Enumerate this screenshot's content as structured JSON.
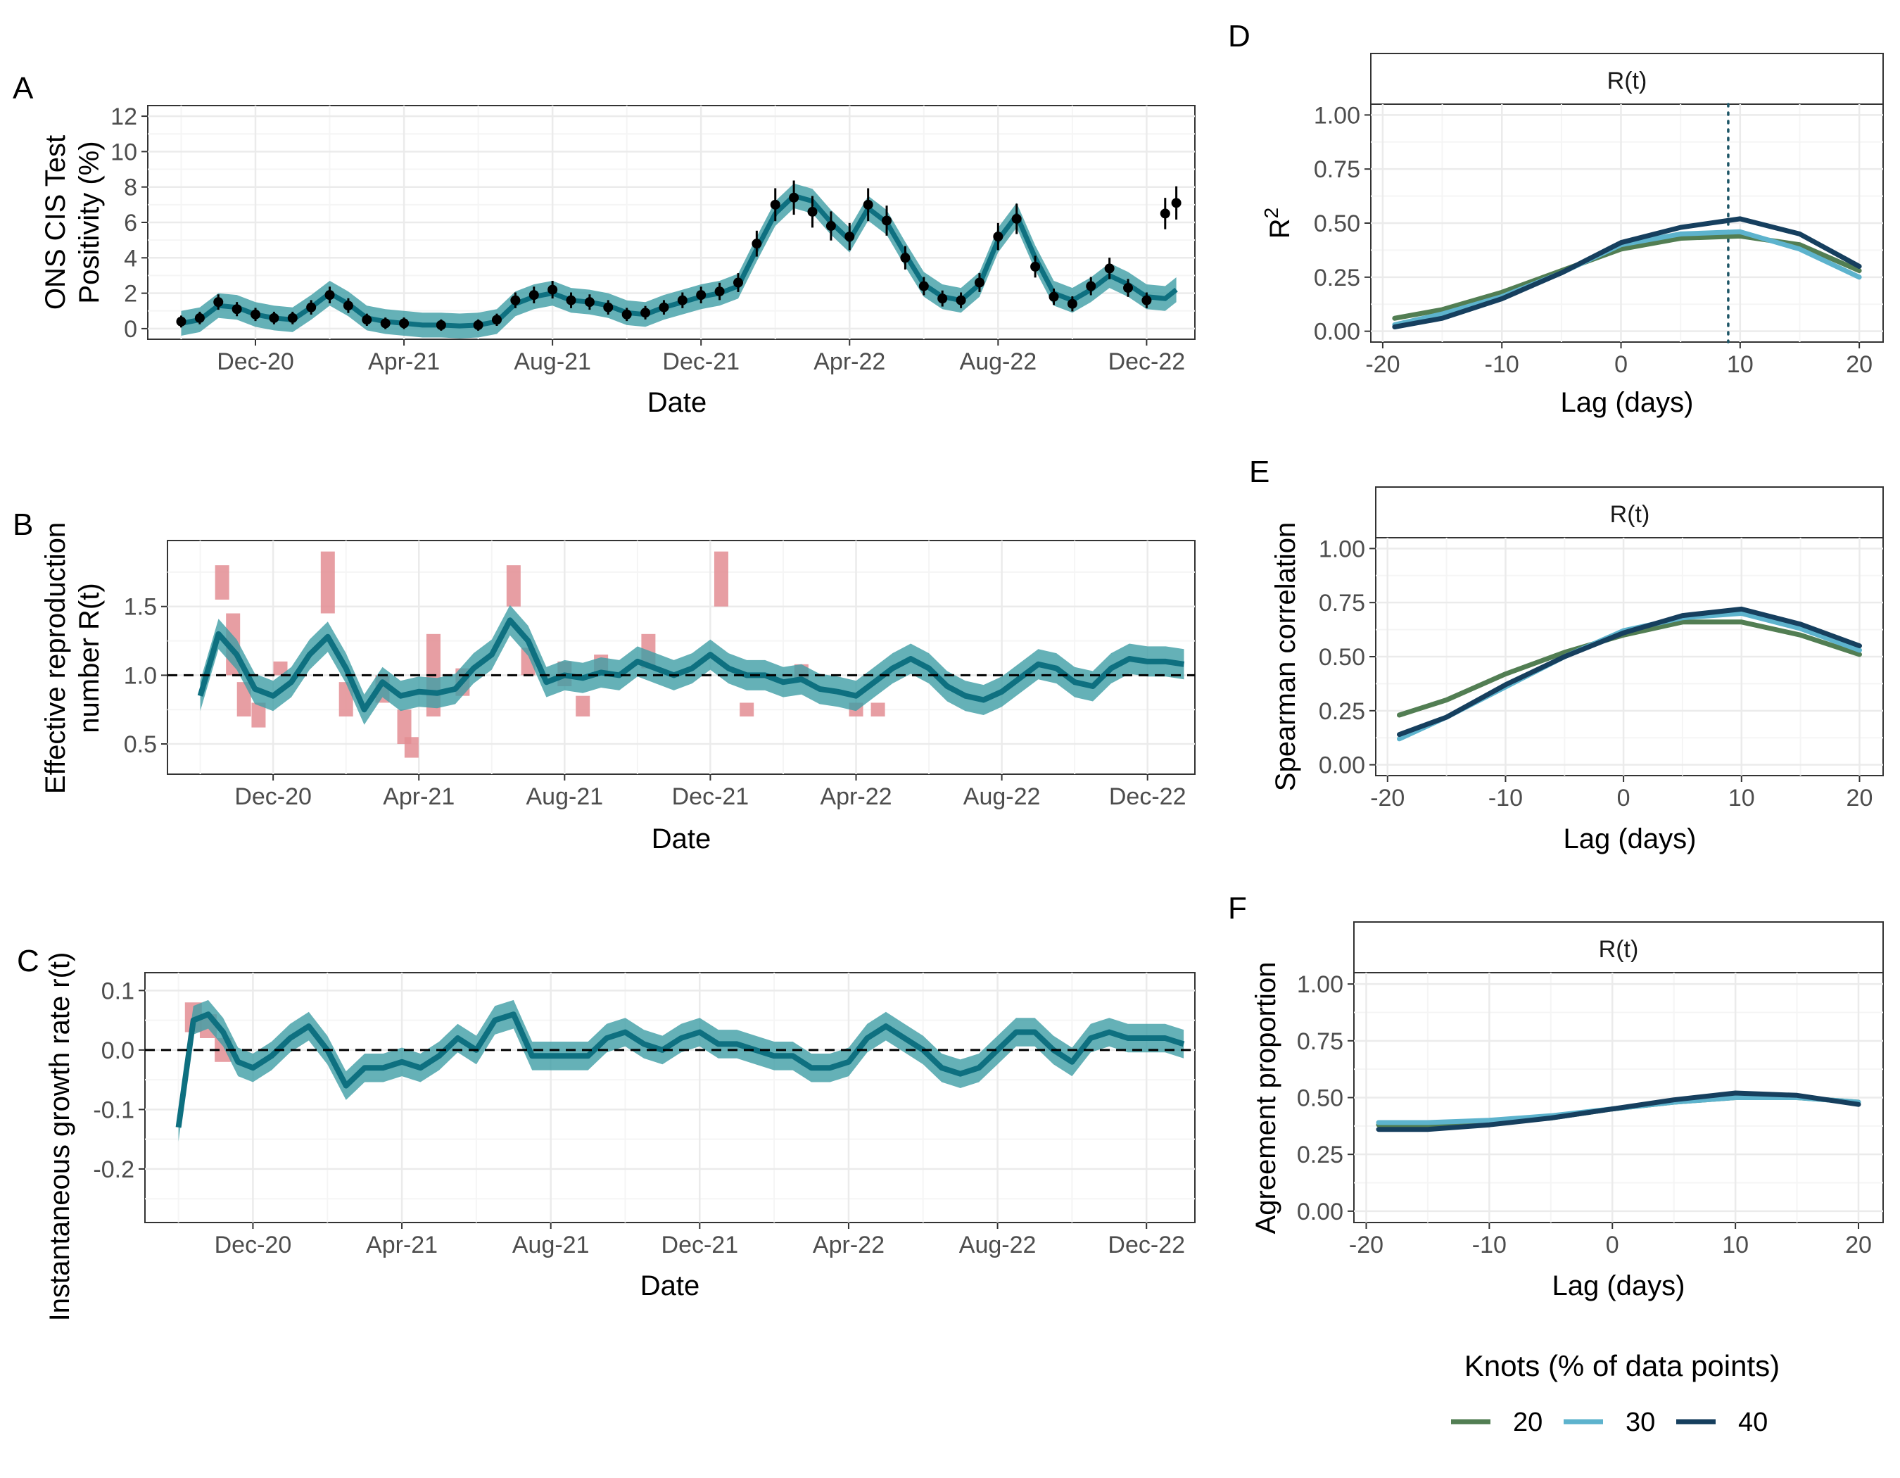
{
  "colors": {
    "teal_line": "#0e7080",
    "teal_band": "#3f9ea5",
    "red_bar": "#e38d93",
    "point": "#000000",
    "k20": "#527e53",
    "k30": "#5db3cd",
    "k40": "#163f5e",
    "grid": "#ebebeb",
    "panel_border": "#333333"
  },
  "date_axis": {
    "tick_labels": [
      "Dec-20",
      "Apr-21",
      "Aug-21",
      "Dec-21",
      "Apr-22",
      "Aug-22",
      "Dec-22"
    ]
  },
  "lag_axis": {
    "tick_labels": [
      "-20",
      "-10",
      "0",
      "10",
      "20"
    ]
  },
  "panels": {
    "A": {
      "tag": "A",
      "xlabel": "Date",
      "ylabel_line1": "ONS CIS Test",
      "ylabel_line2": "Positivity (%)",
      "yticks": [
        "0",
        "2",
        "4",
        "6",
        "8",
        "10",
        "12"
      ]
    },
    "B": {
      "tag": "B",
      "xlabel": "Date",
      "ylabel_line1": "Effective reproduction",
      "ylabel_line2": "number R(t)",
      "yticks": [
        "0.5",
        "1.0",
        "1.5"
      ]
    },
    "C": {
      "tag": "C",
      "xlabel": "Date",
      "ylabel": "Instantaneous growth rate r(t)",
      "yticks": [
        "-0.2",
        "-0.1",
        "0.0",
        "0.1"
      ]
    },
    "D": {
      "tag": "D",
      "strip": "R(t)",
      "xlabel": "Lag (days)",
      "ylabel": "R",
      "ylabel_sup": "2",
      "yticks": [
        "0.00",
        "0.25",
        "0.50",
        "0.75",
        "1.00"
      ]
    },
    "E": {
      "tag": "E",
      "strip": "R(t)",
      "xlabel": "Lag (days)",
      "ylabel": "Spearman correlation",
      "yticks": [
        "0.00",
        "0.25",
        "0.50",
        "0.75",
        "1.00"
      ]
    },
    "F": {
      "tag": "F",
      "strip": "R(t)",
      "xlabel": "Lag (days)",
      "ylabel": "Agreement proportion",
      "yticks": [
        "0.00",
        "0.25",
        "0.50",
        "0.75",
        "1.00"
      ]
    }
  },
  "legend": {
    "title": "Knots (% of data points)",
    "items": [
      "20",
      "30",
      "40"
    ]
  },
  "chart_data": [
    {
      "panel": "A",
      "type": "line",
      "x_unit": "month index (0 = Dec-20)",
      "xlim": [
        -2.9,
        25.3
      ],
      "ylim": [
        -0.6,
        12.6
      ],
      "y_label": "ONS CIS Test Positivity (%)",
      "line_x": [
        -2.0,
        -1.5,
        -1.0,
        -0.5,
        0.0,
        0.5,
        1.0,
        1.5,
        2.0,
        2.5,
        3.0,
        3.5,
        4.0,
        4.5,
        5.0,
        5.5,
        6.0,
        6.5,
        7.0,
        7.5,
        8.0,
        8.5,
        9.0,
        9.5,
        10.0,
        10.5,
        11.0,
        11.5,
        12.0,
        12.5,
        13.0,
        13.5,
        14.0,
        14.5,
        15.0,
        15.5,
        16.0,
        16.5,
        17.0,
        17.5,
        18.0,
        18.5,
        19.0,
        19.5,
        20.0,
        20.5,
        21.0,
        21.5,
        22.0,
        22.5,
        23.0,
        23.5,
        24.0,
        24.5,
        24.8
      ],
      "line_y": [
        0.3,
        0.5,
        1.3,
        1.2,
        0.8,
        0.6,
        0.5,
        1.2,
        2.0,
        1.4,
        0.6,
        0.4,
        0.3,
        0.2,
        0.2,
        0.15,
        0.2,
        0.4,
        1.4,
        1.8,
        2.0,
        1.6,
        1.5,
        1.3,
        0.9,
        0.8,
        1.2,
        1.5,
        1.8,
        2.0,
        2.4,
        4.5,
        6.5,
        7.5,
        7.2,
        6.0,
        5.0,
        6.8,
        6.0,
        4.2,
        2.5,
        1.8,
        1.6,
        2.5,
        5.0,
        6.4,
        4.0,
        2.0,
        1.6,
        2.2,
        3.0,
        2.5,
        1.8,
        1.7,
        2.2
      ],
      "points_x": [
        -2.0,
        -1.5,
        -1.0,
        -0.5,
        0.0,
        0.5,
        1.0,
        1.5,
        2.0,
        2.5,
        3.0,
        3.5,
        4.0,
        5.0,
        6.0,
        6.5,
        7.0,
        7.5,
        8.0,
        8.5,
        9.0,
        9.5,
        10.0,
        10.5,
        11.0,
        11.5,
        12.0,
        12.5,
        13.0,
        13.5,
        14.0,
        14.5,
        15.0,
        15.5,
        16.0,
        16.5,
        17.0,
        17.5,
        18.0,
        18.5,
        19.0,
        19.5,
        20.0,
        20.5,
        21.0,
        21.5,
        22.0,
        22.5,
        23.0,
        23.5,
        24.0,
        24.5,
        24.8
      ],
      "points_y": [
        0.4,
        0.6,
        1.5,
        1.1,
        0.8,
        0.6,
        0.6,
        1.2,
        1.9,
        1.3,
        0.5,
        0.3,
        0.3,
        0.2,
        0.2,
        0.5,
        1.6,
        1.9,
        2.2,
        1.6,
        1.5,
        1.2,
        0.8,
        0.9,
        1.2,
        1.6,
        1.9,
        2.1,
        2.6,
        4.8,
        7.0,
        7.4,
        6.6,
        5.8,
        5.2,
        7.0,
        6.1,
        4.0,
        2.4,
        1.7,
        1.6,
        2.6,
        5.2,
        6.2,
        3.5,
        1.8,
        1.4,
        2.4,
        3.4,
        2.3,
        1.6,
        6.5,
        7.1
      ],
      "band_width": 0.7
    },
    {
      "panel": "B",
      "type": "line",
      "x_unit": "month index (0 = Dec-20)",
      "xlim": [
        -2.9,
        25.3
      ],
      "ylim": [
        0.28,
        1.98
      ],
      "y_label": "Effective reproduction number R(t)",
      "reference_line_y": 1.0,
      "line_x": [
        -2.0,
        -1.5,
        -1.0,
        -0.5,
        0.0,
        0.5,
        1.0,
        1.5,
        2.0,
        2.5,
        3.0,
        3.5,
        4.0,
        4.5,
        5.0,
        5.5,
        6.0,
        6.5,
        7.0,
        7.5,
        8.0,
        8.5,
        9.0,
        9.5,
        10.0,
        10.5,
        11.0,
        11.5,
        12.0,
        12.5,
        13.0,
        13.5,
        14.0,
        14.5,
        15.0,
        15.5,
        16.0,
        16.5,
        17.0,
        17.5,
        18.0,
        18.5,
        19.0,
        19.5,
        20.0,
        20.5,
        21.0,
        21.5,
        22.0,
        22.5,
        23.0,
        23.5,
        24.0,
        24.5,
        25.0
      ],
      "line_y": [
        0.85,
        1.3,
        1.15,
        0.9,
        0.85,
        0.95,
        1.15,
        1.28,
        1.05,
        0.75,
        0.95,
        0.85,
        0.88,
        0.87,
        0.9,
        1.05,
        1.15,
        1.4,
        1.25,
        0.95,
        1.0,
        0.98,
        1.02,
        1.0,
        1.1,
        1.05,
        1.0,
        1.05,
        1.15,
        1.05,
        1.0,
        1.0,
        0.95,
        0.97,
        0.9,
        0.88,
        0.85,
        0.95,
        1.05,
        1.12,
        1.05,
        0.92,
        0.85,
        0.82,
        0.88,
        0.98,
        1.08,
        1.05,
        0.95,
        0.92,
        1.05,
        1.12,
        1.1,
        1.1,
        1.08
      ],
      "band_width": 0.11,
      "bars": [
        {
          "x": -1.4,
          "y0": 1.55,
          "y1": 1.8
        },
        {
          "x": -1.1,
          "y0": 1.0,
          "y1": 1.45
        },
        {
          "x": -0.8,
          "y0": 0.7,
          "y1": 0.95
        },
        {
          "x": -0.4,
          "y0": 0.62,
          "y1": 0.8
        },
        {
          "x": 0.2,
          "y0": 1.0,
          "y1": 1.1
        },
        {
          "x": 1.5,
          "y0": 1.45,
          "y1": 1.9
        },
        {
          "x": 2.0,
          "y0": 0.7,
          "y1": 0.95
        },
        {
          "x": 3.0,
          "y0": 0.8,
          "y1": 1.0
        },
        {
          "x": 3.6,
          "y0": 0.5,
          "y1": 0.75
        },
        {
          "x": 3.8,
          "y0": 0.4,
          "y1": 0.55
        },
        {
          "x": 4.4,
          "y0": 0.7,
          "y1": 1.3
        },
        {
          "x": 5.2,
          "y0": 0.85,
          "y1": 1.05
        },
        {
          "x": 6.6,
          "y0": 1.5,
          "y1": 1.8
        },
        {
          "x": 7.0,
          "y0": 1.0,
          "y1": 1.2
        },
        {
          "x": 8.0,
          "y0": 0.92,
          "y1": 1.1
        },
        {
          "x": 8.5,
          "y0": 0.7,
          "y1": 0.85
        },
        {
          "x": 9.0,
          "y0": 1.0,
          "y1": 1.15
        },
        {
          "x": 10.3,
          "y0": 1.05,
          "y1": 1.3
        },
        {
          "x": 12.3,
          "y0": 1.5,
          "y1": 1.9
        },
        {
          "x": 13.0,
          "y0": 0.7,
          "y1": 0.8
        },
        {
          "x": 14.5,
          "y0": 0.95,
          "y1": 1.08
        },
        {
          "x": 16.0,
          "y0": 0.7,
          "y1": 0.8
        },
        {
          "x": 16.6,
          "y0": 0.7,
          "y1": 0.8
        }
      ]
    },
    {
      "panel": "C",
      "type": "line",
      "x_unit": "month index (0 = Dec-20)",
      "xlim": [
        -2.9,
        25.3
      ],
      "ylim": [
        -0.29,
        0.13
      ],
      "y_label": "Instantaneous growth rate r(t)",
      "reference_line_y": 0.0,
      "line_x": [
        -2.0,
        -1.6,
        -1.2,
        -0.8,
        -0.4,
        0.0,
        0.5,
        1.0,
        1.5,
        2.0,
        2.5,
        3.0,
        3.5,
        4.0,
        4.5,
        5.0,
        5.5,
        6.0,
        6.5,
        7.0,
        7.5,
        8.0,
        8.5,
        9.0,
        9.5,
        10.0,
        10.5,
        11.0,
        11.5,
        12.0,
        12.5,
        13.0,
        13.5,
        14.0,
        14.5,
        15.0,
        15.5,
        16.0,
        16.5,
        17.0,
        17.5,
        18.0,
        18.5,
        19.0,
        19.5,
        20.0,
        20.5,
        21.0,
        21.5,
        22.0,
        22.5,
        23.0,
        23.5,
        24.0,
        24.5,
        25.0
      ],
      "line_y": [
        -0.13,
        0.05,
        0.06,
        0.03,
        -0.02,
        -0.03,
        -0.01,
        0.02,
        0.04,
        0.0,
        -0.06,
        -0.03,
        -0.03,
        -0.02,
        -0.03,
        -0.01,
        0.02,
        0.0,
        0.05,
        0.06,
        -0.01,
        -0.01,
        -0.01,
        -0.01,
        0.02,
        0.03,
        0.01,
        0.0,
        0.02,
        0.03,
        0.01,
        0.01,
        0.0,
        -0.01,
        -0.01,
        -0.03,
        -0.03,
        -0.02,
        0.02,
        0.04,
        0.02,
        0.0,
        -0.03,
        -0.04,
        -0.03,
        0.0,
        0.03,
        0.03,
        0.0,
        -0.02,
        0.02,
        0.03,
        0.02,
        0.02,
        0.02,
        0.01
      ],
      "band_width": 0.024,
      "bars": [
        {
          "x": -1.6,
          "y0": 0.03,
          "y1": 0.08
        },
        {
          "x": -1.2,
          "y0": 0.02,
          "y1": 0.06
        },
        {
          "x": -0.8,
          "y0": -0.02,
          "y1": 0.02
        }
      ]
    },
    {
      "panel": "D",
      "type": "line",
      "xlim": [
        -21.0,
        22.0
      ],
      "ylim": [
        -0.05,
        1.05
      ],
      "x_label": "Lag (days)",
      "y_label": "R2",
      "vline_x": 9,
      "x": [
        -19,
        -15,
        -10,
        -5,
        0,
        5,
        10,
        15,
        20
      ],
      "series": [
        {
          "name": "20",
          "values": [
            0.06,
            0.1,
            0.18,
            0.28,
            0.38,
            0.43,
            0.44,
            0.4,
            0.28
          ]
        },
        {
          "name": "30",
          "values": [
            0.03,
            0.08,
            0.16,
            0.27,
            0.4,
            0.45,
            0.46,
            0.38,
            0.25
          ]
        },
        {
          "name": "40",
          "values": [
            0.02,
            0.06,
            0.15,
            0.27,
            0.41,
            0.48,
            0.52,
            0.45,
            0.3
          ]
        }
      ]
    },
    {
      "panel": "E",
      "type": "line",
      "xlim": [
        -21.0,
        22.0
      ],
      "ylim": [
        -0.05,
        1.05
      ],
      "x_label": "Lag (days)",
      "y_label": "Spearman correlation",
      "x": [
        -19,
        -15,
        -10,
        -5,
        0,
        5,
        10,
        15,
        20
      ],
      "series": [
        {
          "name": "20",
          "values": [
            0.23,
            0.3,
            0.42,
            0.52,
            0.6,
            0.66,
            0.66,
            0.6,
            0.51
          ]
        },
        {
          "name": "30",
          "values": [
            0.12,
            0.22,
            0.36,
            0.5,
            0.62,
            0.68,
            0.7,
            0.63,
            0.53
          ]
        },
        {
          "name": "40",
          "values": [
            0.14,
            0.22,
            0.37,
            0.5,
            0.61,
            0.69,
            0.72,
            0.65,
            0.55
          ]
        }
      ]
    },
    {
      "panel": "F",
      "type": "line",
      "xlim": [
        -21.0,
        22.0
      ],
      "ylim": [
        -0.05,
        1.05
      ],
      "x_label": "Lag (days)",
      "y_label": "Agreement proportion",
      "x": [
        -19,
        -15,
        -10,
        -5,
        0,
        5,
        10,
        15,
        20
      ],
      "series": [
        {
          "name": "20",
          "values": [
            0.38,
            0.38,
            0.39,
            0.41,
            0.45,
            0.48,
            0.5,
            0.5,
            0.48
          ]
        },
        {
          "name": "30",
          "values": [
            0.39,
            0.39,
            0.4,
            0.42,
            0.45,
            0.48,
            0.5,
            0.5,
            0.48
          ]
        },
        {
          "name": "40",
          "values": [
            0.36,
            0.36,
            0.38,
            0.41,
            0.45,
            0.49,
            0.52,
            0.51,
            0.47
          ]
        }
      ]
    }
  ]
}
